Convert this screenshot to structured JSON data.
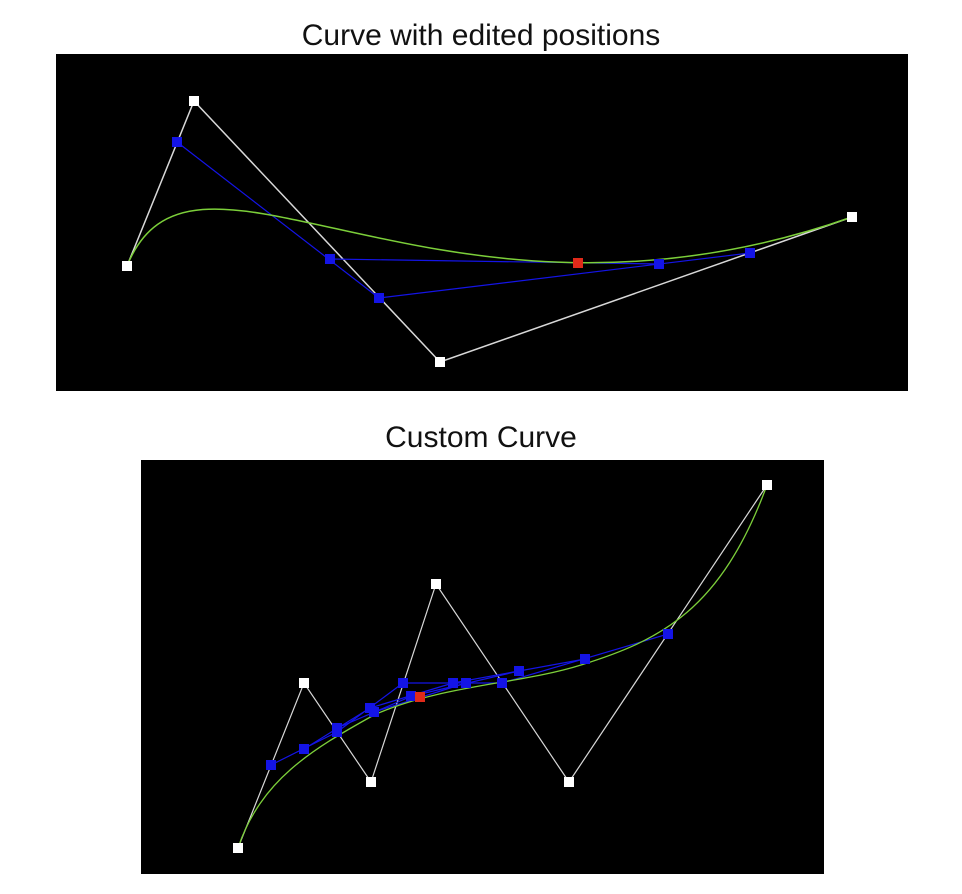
{
  "panels": [
    {
      "title": "Curve with edited positions",
      "colors": {
        "background": "#000000",
        "curve": "#7ccf3a",
        "control_polygon": "#d8d8d8",
        "construction": "#1414e6",
        "point_on_curve": "#e02a1a",
        "control_point": "#ffffff"
      }
    },
    {
      "title": "Custom Curve",
      "colors": {
        "background": "#000000",
        "curve": "#7ccf3a",
        "control_polygon": "#d8d8d8",
        "construction": "#1414e6",
        "point_on_curve": "#e02a1a",
        "control_point": "#ffffff"
      }
    }
  ]
}
